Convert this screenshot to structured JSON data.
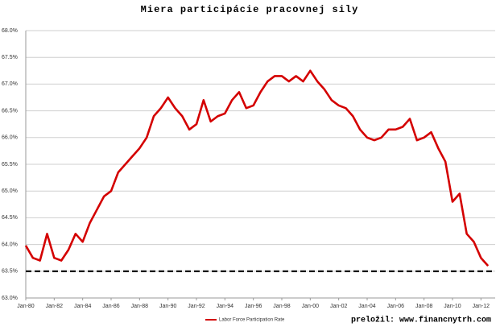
{
  "chart_data": {
    "type": "line",
    "title": "Miera participácie pracovnej sily",
    "annotation": "preložil: www.financnytrh.com",
    "x": [
      1980,
      1980.5,
      1981,
      1981.5,
      1982,
      1982.5,
      1983,
      1983.5,
      1984,
      1984.5,
      1985,
      1985.5,
      1986,
      1986.5,
      1987,
      1987.5,
      1988,
      1988.5,
      1989,
      1989.5,
      1990,
      1990.5,
      1991,
      1991.5,
      1992,
      1992.5,
      1993,
      1993.5,
      1994,
      1994.5,
      1995,
      1995.5,
      1996,
      1996.5,
      1997,
      1997.5,
      1998,
      1998.5,
      1999,
      1999.5,
      2000,
      2000.5,
      2001,
      2001.5,
      2002,
      2002.5,
      2003,
      2003.5,
      2004,
      2004.5,
      2005,
      2005.5,
      2006,
      2006.5,
      2007,
      2007.5,
      2008,
      2008.5,
      2009,
      2009.5,
      2010,
      2010.5,
      2011,
      2011.5,
      2012,
      2012.5
    ],
    "series": [
      {
        "name": "Labor Force Participation Rate",
        "color": "#d40000",
        "values": [
          63.98,
          63.75,
          63.7,
          64.2,
          63.75,
          63.7,
          63.9,
          64.2,
          64.05,
          64.4,
          64.65,
          64.9,
          65.0,
          65.35,
          65.5,
          65.65,
          65.8,
          66.0,
          66.4,
          66.55,
          66.75,
          66.55,
          66.4,
          66.15,
          66.25,
          66.7,
          66.3,
          66.4,
          66.45,
          66.7,
          66.85,
          66.55,
          66.6,
          66.85,
          67.05,
          67.15,
          67.15,
          67.05,
          67.15,
          67.05,
          67.25,
          67.05,
          66.9,
          66.7,
          66.6,
          66.55,
          66.4,
          66.15,
          66.0,
          65.95,
          66.0,
          66.15,
          66.15,
          66.2,
          66.35,
          65.95,
          66.0,
          66.1,
          65.8,
          65.55,
          64.8,
          64.95,
          64.2,
          64.05,
          63.75,
          63.6
        ]
      }
    ],
    "reference_line": {
      "value": 63.5,
      "color": "#000000",
      "style": "dashed"
    },
    "xlim": [
      1980,
      2013
    ],
    "xticks": [
      {
        "value": 1980,
        "label": "Jan-80"
      },
      {
        "value": 1982,
        "label": "Jan-82"
      },
      {
        "value": 1984,
        "label": "Jan-84"
      },
      {
        "value": 1986,
        "label": "Jan-86"
      },
      {
        "value": 1988,
        "label": "Jan-88"
      },
      {
        "value": 1990,
        "label": "Jan-90"
      },
      {
        "value": 1992,
        "label": "Jan-92"
      },
      {
        "value": 1994,
        "label": "Jan-94"
      },
      {
        "value": 1996,
        "label": "Jan-96"
      },
      {
        "value": 1998,
        "label": "Jan-98"
      },
      {
        "value": 2000,
        "label": "Jan-00"
      },
      {
        "value": 2002,
        "label": "Jan-02"
      },
      {
        "value": 2004,
        "label": "Jan-04"
      },
      {
        "value": 2006,
        "label": "Jan-06"
      },
      {
        "value": 2008,
        "label": "Jan-08"
      },
      {
        "value": 2010,
        "label": "Jan-10"
      },
      {
        "value": 2012,
        "label": "Jan-12"
      }
    ],
    "ylim": [
      63,
      68
    ],
    "yticks": [
      {
        "value": 63,
        "label": "63.0%"
      },
      {
        "value": 63.5,
        "label": "63.5%"
      },
      {
        "value": 64,
        "label": "64.0%"
      },
      {
        "value": 64.5,
        "label": "64.5%"
      },
      {
        "value": 65,
        "label": "65.0%"
      },
      {
        "value": 65.5,
        "label": "65.5%"
      },
      {
        "value": 66,
        "label": "66.0%"
      },
      {
        "value": 66.5,
        "label": "66.5%"
      },
      {
        "value": 67,
        "label": "67.0%"
      },
      {
        "value": 67.5,
        "label": "67.5%"
      },
      {
        "value": 68,
        "label": "68.0%"
      }
    ],
    "grid": true,
    "legend": "bottom"
  }
}
